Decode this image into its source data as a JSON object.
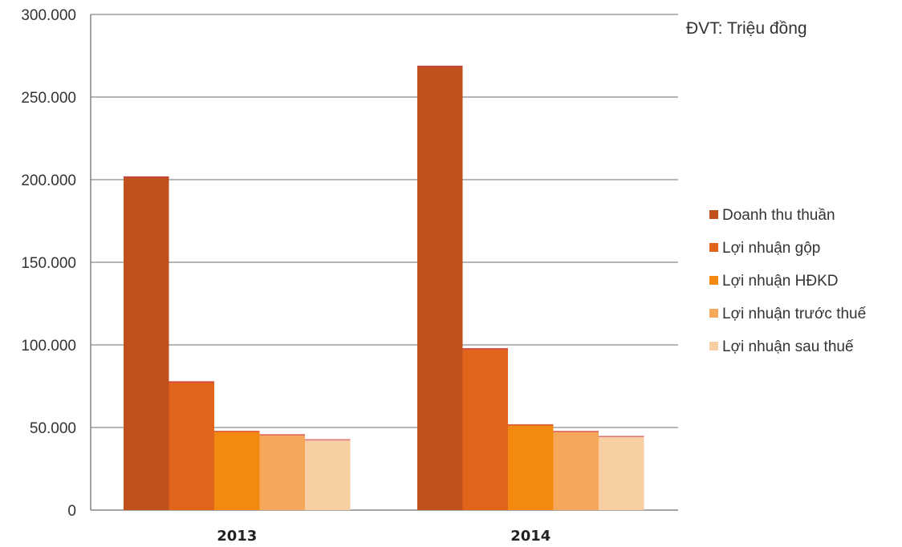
{
  "chart_data": {
    "type": "bar",
    "unit_note": "ĐVT: Triệu đồng",
    "categories": [
      "2013",
      "2014"
    ],
    "y_ticks": [
      "0",
      "50.000",
      "100.000",
      "150.000",
      "200.000",
      "250.000",
      "300.000"
    ],
    "ylim": [
      0,
      300000
    ],
    "grid": true,
    "legend_position": "right",
    "series": [
      {
        "name": "Doanh thu thuần",
        "color": "#c0501c",
        "values": [
          202000,
          269000
        ]
      },
      {
        "name": "Lợi nhuận gộp",
        "color": "#e0641a",
        "values": [
          78000,
          98000
        ]
      },
      {
        "name": "Lợi nhuận HĐKD",
        "color": "#f28a12",
        "values": [
          48000,
          52000
        ]
      },
      {
        "name": "Lợi nhuận trước thuế",
        "color": "#f5a85a",
        "values": [
          46000,
          48000
        ]
      },
      {
        "name": "Lợi nhuận sau thuế",
        "color": "#f7cfa2",
        "values": [
          43000,
          45000
        ]
      }
    ]
  }
}
